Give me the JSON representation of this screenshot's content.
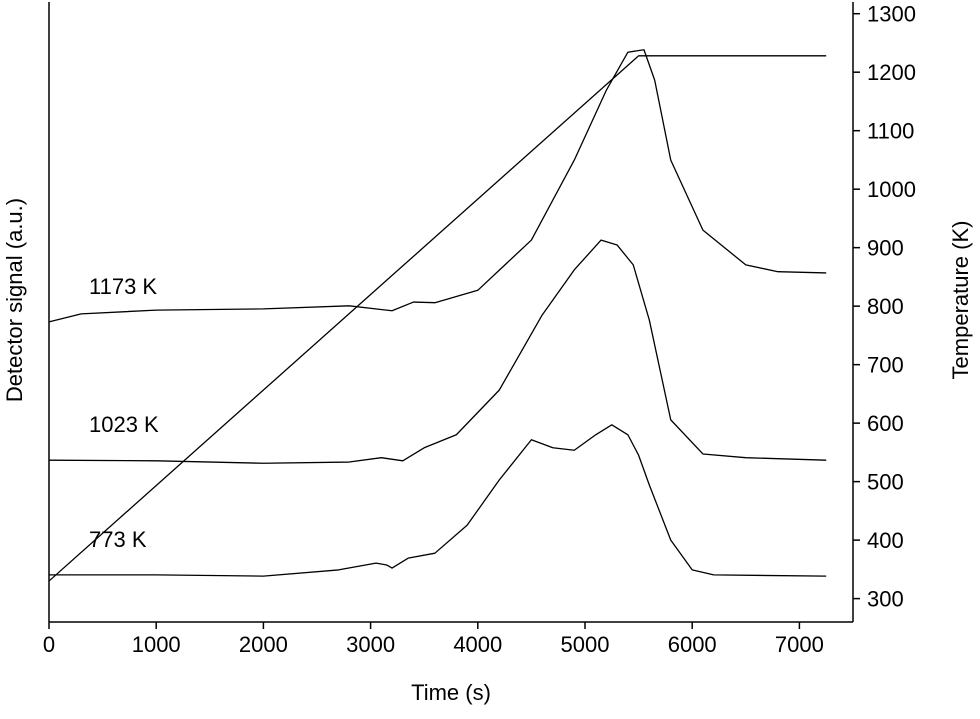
{
  "chart_data": {
    "type": "line",
    "xlabel": "Time (s)",
    "ylabel": "Detector signal (a.u.)",
    "y2label": "Temperature (K)",
    "xlim": [
      0,
      7500
    ],
    "xticks": [
      0,
      1000,
      2000,
      3000,
      4000,
      5000,
      6000,
      7000
    ],
    "ylim": [
      0,
      100
    ],
    "y2lim": [
      260,
      1320
    ],
    "y2ticks": [
      300,
      400,
      500,
      600,
      700,
      800,
      900,
      1000,
      1100,
      1200,
      1300
    ],
    "series": [
      {
        "name": "1173 K",
        "color": "#000000",
        "x": [
          0,
          300,
          1000,
          2000,
          2800,
          3200,
          3400,
          3600,
          4000,
          4500,
          4900,
          5200,
          5400,
          5550,
          5650,
          5800,
          6100,
          6500,
          6800,
          7250
        ],
        "values": [
          48.4,
          49.7,
          50.3,
          50.5,
          51.0,
          50.2,
          51.6,
          51.5,
          53.5,
          61.6,
          74.5,
          85.8,
          91.9,
          92.3,
          87.4,
          74.5,
          63.2,
          57.6,
          56.5,
          56.3
        ]
      },
      {
        "name": "1023 K",
        "color": "#000000",
        "x": [
          0,
          1000,
          2000,
          2800,
          3100,
          3300,
          3500,
          3800,
          4200,
          4600,
          4900,
          5150,
          5300,
          5450,
          5600,
          5800,
          6100,
          6500,
          7250
        ],
        "values": [
          26.1,
          26.0,
          25.6,
          25.8,
          26.5,
          26.0,
          28.1,
          30.2,
          37.4,
          49.5,
          56.8,
          61.6,
          60.8,
          57.6,
          48.7,
          32.6,
          27.1,
          26.5,
          26.1
        ]
      },
      {
        "name": "773 K",
        "color": "#000000",
        "x": [
          0,
          1000,
          2000,
          2700,
          3050,
          3150,
          3200,
          3350,
          3600,
          3900,
          4200,
          4500,
          4700,
          4900,
          5100,
          5250,
          5400,
          5500,
          5600,
          5800,
          6000,
          6200,
          7250
        ],
        "values": [
          7.6,
          7.6,
          7.4,
          8.4,
          9.5,
          9.2,
          8.7,
          10.3,
          11.1,
          15.6,
          22.9,
          29.4,
          28.1,
          27.7,
          30.2,
          31.8,
          30.2,
          26.9,
          22.1,
          13.2,
          8.4,
          7.6,
          7.4
        ]
      },
      {
        "color": "#000000",
        "axis": "y2",
        "x": [
          0,
          5500,
          7250
        ],
        "values": [
          330,
          1228,
          1228
        ]
      }
    ]
  }
}
